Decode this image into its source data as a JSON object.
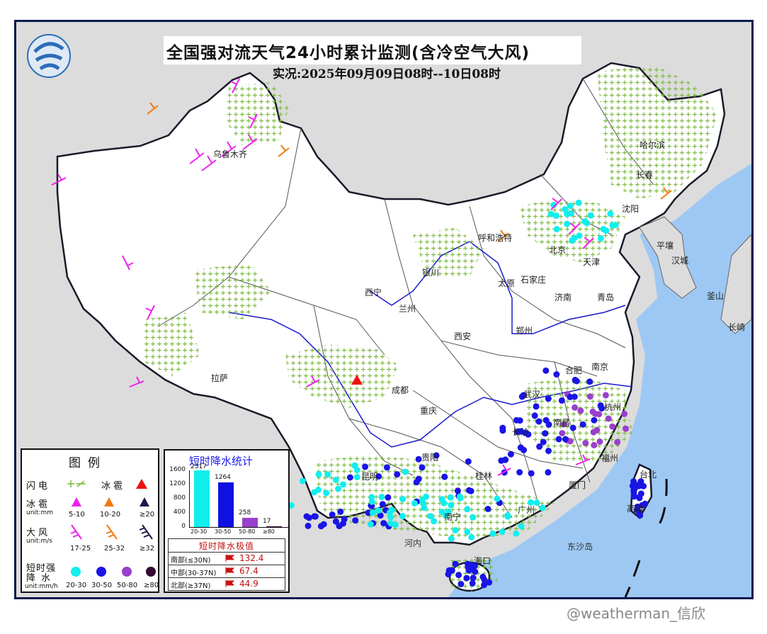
{
  "title": "全国强对流天气24小时累计监测(含冷空气大风)",
  "subtitle": "实况:2025年09月09日08时--10日08时",
  "watermark": "@weatherman_信欣",
  "cities": [
    {
      "name": "乌鲁木齐"
    },
    {
      "name": "哈尔滨"
    },
    {
      "name": "长春"
    },
    {
      "name": "沈阳"
    },
    {
      "name": "呼和浩特"
    },
    {
      "name": "北京"
    },
    {
      "name": "天津"
    },
    {
      "name": "银川"
    },
    {
      "name": "太原"
    },
    {
      "name": "石家庄"
    },
    {
      "name": "济南"
    },
    {
      "name": "西宁"
    },
    {
      "name": "兰州"
    },
    {
      "name": "郑州"
    },
    {
      "name": "西安"
    },
    {
      "name": "合肥"
    },
    {
      "name": "南京"
    },
    {
      "name": "拉萨"
    },
    {
      "name": "成都"
    },
    {
      "name": "武汉"
    },
    {
      "name": "重庆"
    },
    {
      "name": "长沙"
    },
    {
      "name": "南昌"
    },
    {
      "name": "贵阳"
    },
    {
      "name": "福州"
    },
    {
      "name": "昆明"
    },
    {
      "name": "桂林"
    },
    {
      "name": "南宁"
    },
    {
      "name": "广州"
    },
    {
      "name": "厦门"
    },
    {
      "name": "海口"
    },
    {
      "name": "台北"
    },
    {
      "name": "高雄"
    },
    {
      "name": "平壤"
    },
    {
      "name": "汉城"
    },
    {
      "name": "釜山"
    },
    {
      "name": "长崎"
    },
    {
      "name": "青岛"
    },
    {
      "name": "杭州"
    },
    {
      "name": "河内"
    },
    {
      "name": "东沙岛"
    }
  ],
  "legend": {
    "title": "图例",
    "lightning_label": "闪电",
    "hail_label": "冰雹",
    "hail_size_label": "冰雹",
    "hail_unit": "unit:mm",
    "hail_values": [
      "5-10",
      "10-20",
      "≥20"
    ],
    "wind_label": "大风",
    "wind_unit": "unit:m/s",
    "wind_values": [
      "17-25",
      "25-32",
      "≥32"
    ],
    "rain_label_1": "短时强",
    "rain_label_2": "降水",
    "rain_unit": "unit:mm/h",
    "rain_values": [
      "20-30",
      "30-50",
      "50-80",
      "≥80"
    ],
    "colors": {
      "lightning": "#78b83c",
      "hail_red": "#ee1111",
      "hail_small": "#ee22ee",
      "hail_mid": "#f07a10",
      "hail_big": "#1a1a4a",
      "rain_20": "#11eeee",
      "rain_30": "#1a14e6",
      "rain_50": "#9a40cc",
      "rain_80": "#330a33"
    }
  },
  "stats": {
    "title": "短时降水统计",
    "y_ticks": [
      "1600",
      "1200",
      "800",
      "400",
      "0"
    ],
    "categories": [
      "20-30",
      "30-50",
      "50-80",
      "≥80"
    ],
    "values": [
      2317,
      1264,
      258,
      17
    ],
    "value_labels": [
      "2317",
      "1264",
      "258",
      "17"
    ],
    "colors": [
      "#11eeee",
      "#1010e0",
      "#9a40cc",
      "#330a33"
    ],
    "ylim": [
      0,
      1600
    ]
  },
  "extreme": {
    "title": "短时降水极值",
    "rows": [
      {
        "name": "南部(≤30N)",
        "value": "132.4"
      },
      {
        "name": "中部(30-37N)",
        "value": "67.4"
      },
      {
        "name": "北部(≥37N)",
        "value": "44.9"
      }
    ]
  }
}
